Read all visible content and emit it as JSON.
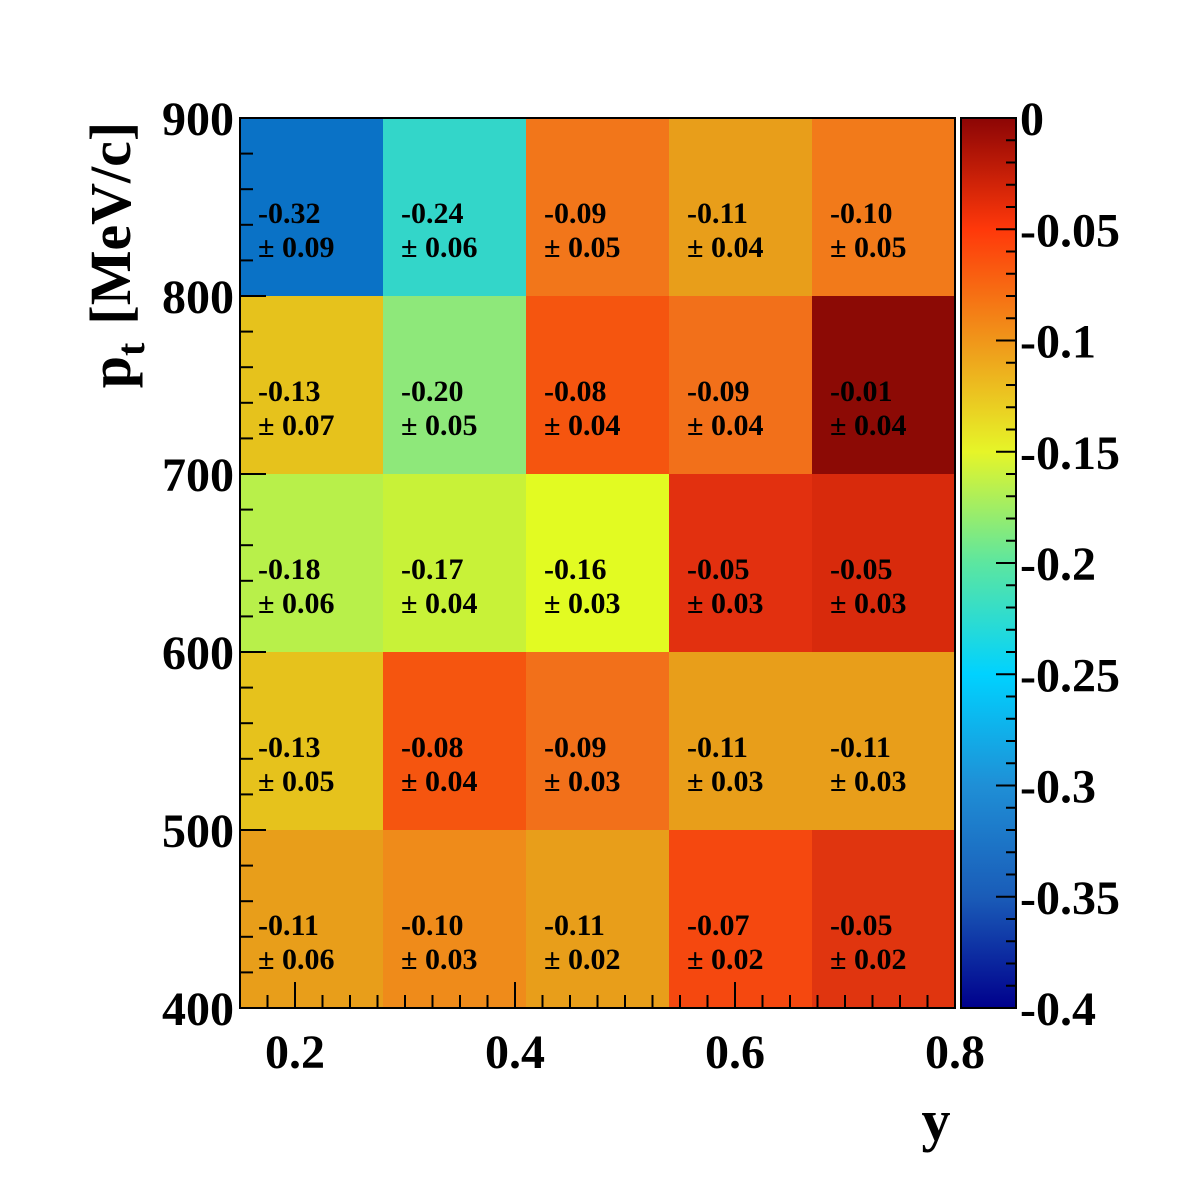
{
  "chart_data": {
    "type": "heatmap",
    "title": "",
    "xlabel": "y",
    "ylabel_main": "p",
    "ylabel_sub": "t",
    "ylabel_units": "[MeV/c]",
    "x_range": [
      0.15,
      0.8
    ],
    "y_range": [
      400,
      900
    ],
    "x_bin_edges": [
      0.15,
      0.28,
      0.41,
      0.54,
      0.67,
      0.8
    ],
    "y_bin_edges": [
      400,
      500,
      600,
      700,
      800,
      900
    ],
    "x_ticks": [
      0.2,
      0.4,
      0.6,
      0.8
    ],
    "x_tick_labels": [
      "0.2",
      "0.4",
      "0.6",
      "0.8"
    ],
    "y_ticks": [
      400,
      500,
      600,
      700,
      800,
      900
    ],
    "y_tick_labels": [
      "400",
      "500",
      "600",
      "700",
      "800",
      "900"
    ],
    "z_range": [
      -0.4,
      0
    ],
    "colorbar_ticks": [
      0,
      -0.05,
      -0.1,
      -0.15,
      -0.2,
      -0.25,
      -0.3,
      -0.35,
      -0.4
    ],
    "colorbar_tick_labels": [
      "0",
      "-0.05",
      "-0.1",
      "-0.15",
      "-0.2",
      "-0.25",
      "-0.3",
      "-0.35",
      "-0.4"
    ],
    "rows_top_to_bottom": [
      {
        "pt_range": [
          800,
          900
        ],
        "values": [
          -0.32,
          -0.24,
          -0.09,
          -0.11,
          -0.1
        ],
        "value_labels": [
          "-0.32",
          "-0.24",
          "-0.09",
          "-0.11",
          "-0.10"
        ],
        "error_labels": [
          "± 0.09",
          "± 0.06",
          "± 0.05",
          "± 0.04",
          "± 0.05"
        ],
        "colors": [
          "#0a72c6",
          "#33d6c9",
          "#f2761a",
          "#e89e1a",
          "#f27a1a"
        ]
      },
      {
        "pt_range": [
          700,
          800
        ],
        "values": [
          -0.13,
          -0.2,
          -0.08,
          -0.09,
          -0.01
        ],
        "value_labels": [
          "-0.13",
          "-0.20",
          "-0.08",
          "-0.09",
          "-0.01"
        ],
        "error_labels": [
          "± 0.07",
          "± 0.05",
          "± 0.04",
          "± 0.04",
          "± 0.04"
        ],
        "colors": [
          "#e6c21c",
          "#8ee87a",
          "#f5550f",
          "#f2701a",
          "#8c0a05"
        ]
      },
      {
        "pt_range": [
          600,
          700
        ],
        "values": [
          -0.18,
          -0.17,
          -0.16,
          -0.05,
          -0.05
        ],
        "value_labels": [
          "-0.18",
          "-0.17",
          "-0.16",
          "-0.05",
          "-0.05"
        ],
        "error_labels": [
          "± 0.06",
          "± 0.04",
          "± 0.03",
          "± 0.03",
          "± 0.03"
        ],
        "colors": [
          "#b8f04a",
          "#c8f238",
          "#e2fb22",
          "#e2300f",
          "#d82a0c"
        ]
      },
      {
        "pt_range": [
          500,
          600
        ],
        "values": [
          -0.13,
          -0.08,
          -0.09,
          -0.11,
          -0.11
        ],
        "value_labels": [
          "-0.13",
          "-0.08",
          "-0.09",
          "-0.11",
          "-0.11"
        ],
        "error_labels": [
          "± 0.05",
          "± 0.04",
          "± 0.03",
          "± 0.03",
          "± 0.03"
        ],
        "colors": [
          "#e6c21c",
          "#f5550f",
          "#f2701a",
          "#e89e1a",
          "#e89e1a"
        ]
      },
      {
        "pt_range": [
          400,
          500
        ],
        "values": [
          -0.11,
          -0.1,
          -0.11,
          -0.07,
          -0.05
        ],
        "value_labels": [
          "-0.11",
          "-0.10",
          "-0.11",
          "-0.07",
          "-0.05"
        ],
        "error_labels": [
          "± 0.06",
          "± 0.03",
          "± 0.02",
          "± 0.02",
          "± 0.02"
        ],
        "colors": [
          "#e89e1a",
          "#ef8b1a",
          "#e89e1a",
          "#f5480f",
          "#e0350f"
        ]
      }
    ],
    "colorbar_stops": [
      {
        "z": -0.4,
        "color": "#00008c"
      },
      {
        "z": -0.35,
        "color": "#1a5cb8"
      },
      {
        "z": -0.3,
        "color": "#1f8fd6"
      },
      {
        "z": -0.25,
        "color": "#00d2ff"
      },
      {
        "z": -0.2,
        "color": "#5ce6a0"
      },
      {
        "z": -0.15,
        "color": "#e6f528"
      },
      {
        "z": -0.1,
        "color": "#f0961a"
      },
      {
        "z": -0.05,
        "color": "#ff380a"
      },
      {
        "z": 0,
        "color": "#8c0505"
      }
    ]
  }
}
